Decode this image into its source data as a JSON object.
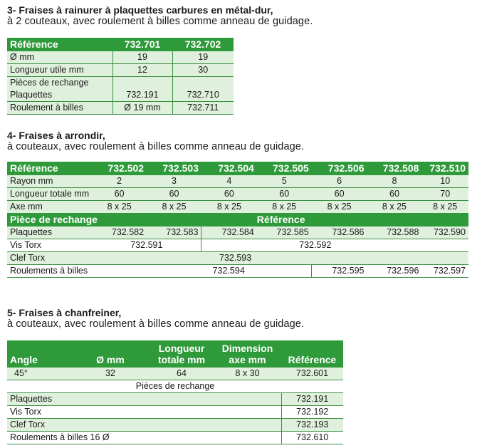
{
  "s3": {
    "title": "3- Fraises à rainurer à plaquettes carbures en métal-dur,",
    "subtitle": "à 2 couteaux, avec roulement à billes comme anneau de guidage.",
    "header": [
      "Référence",
      "732.701",
      "732.702"
    ],
    "rows": [
      {
        "label": "Ø mm",
        "v1": "19",
        "v2": "19"
      },
      {
        "label": "Longueur utile mm",
        "v1": "12",
        "v2": "30"
      },
      {
        "label": "Pièces de rechange",
        "v1": "",
        "v2": ""
      },
      {
        "label": "Plaquettes",
        "v1": "732.191",
        "v2": "732.710"
      },
      {
        "label": "Roulement à billes",
        "v1": "Ø 19 mm",
        "v2": "732.711"
      }
    ]
  },
  "s4": {
    "title": "4- Fraises à arrondir,",
    "subtitle": "à couteaux, avec roulement à billes comme anneau de guidage.",
    "header": [
      "Référence",
      "732.502",
      "732.503",
      "732.504",
      "732.505",
      "732.506",
      "732.508",
      "732.510"
    ],
    "rayon": {
      "label": "Rayon mm",
      "values": [
        "2",
        "3",
        "4",
        "5",
        "6",
        "8",
        "10"
      ]
    },
    "longueur": {
      "label": "Longueur totale mm",
      "values": [
        "60",
        "60",
        "60",
        "60",
        "60",
        "60",
        "70"
      ]
    },
    "axe": {
      "label": "Axe mm",
      "values": [
        "8 x 25",
        "8 x 25",
        "8 x 25",
        "8 x 25",
        "8 x 25",
        "8 x 25",
        "8 x 25"
      ]
    },
    "spare_header": {
      "left": "Pièce de rechange",
      "right": "Référence"
    },
    "plaquettes": {
      "label": "Plaquettes",
      "values": [
        "732.582",
        "732.583",
        "732.584",
        "732.585",
        "732.586",
        "732.588",
        "732.590"
      ]
    },
    "vis": {
      "label": "Vis Torx",
      "a": "732.591",
      "b": "732.592"
    },
    "clef": {
      "label": "Clef Torx",
      "a": "732.593"
    },
    "roulements": {
      "label": "Roulements à billes",
      "a": "732.594",
      "b": "732.595",
      "c": "732.596",
      "d": "732.597"
    }
  },
  "s5": {
    "title": "5- Fraises à chanfreiner,",
    "subtitle": "à couteaux, avec roulement à billes comme anneau de guidage.",
    "header": {
      "angle": "Angle",
      "diam": "Ø mm",
      "long1": "Longueur",
      "long2": "totale mm",
      "dim1": "Dimension",
      "dim2": "axe mm",
      "ref": "Référence"
    },
    "row": {
      "angle": "45°",
      "diam": "32",
      "long": "64",
      "dim": "8 x 30",
      "ref": "732.601"
    },
    "spare_title": "Pièces de rechange",
    "spares": [
      {
        "label": "Plaquettes",
        "ref": "732.191"
      },
      {
        "label": "Vis Torx",
        "ref": "732.192"
      },
      {
        "label": "Clef Torx",
        "ref": "732.193"
      },
      {
        "label": "Roulements à billes 16 Ø",
        "ref": "732.610"
      }
    ]
  }
}
